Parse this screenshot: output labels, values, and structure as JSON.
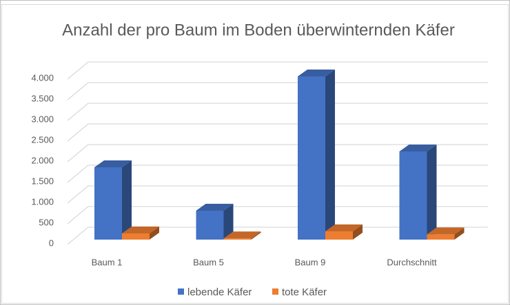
{
  "chart_data": {
    "type": "bar3d",
    "title": "Anzahl der pro Baum im Boden überwinternden Käfer",
    "categories": [
      "Baum 1",
      "Baum 5",
      "Baum 9",
      "Durchschnitt"
    ],
    "series": [
      {
        "name": "lebende Käfer",
        "color": "#4472c4",
        "values": [
          1750,
          700,
          3950,
          2133
        ]
      },
      {
        "name": "tote Käfer",
        "color": "#ed7d31",
        "values": [
          150,
          30,
          200,
          127
        ]
      }
    ],
    "ylim": [
      0,
      4000
    ],
    "yticks": [
      0,
      500,
      {
        "value": 1000,
        "label": "1.000"
      },
      {
        "value": 1500,
        "label": "1.500"
      },
      {
        "value": 2000,
        "label": "2.000"
      },
      {
        "value": 2500,
        "label": "2.500"
      },
      {
        "value": 3000,
        "label": "3.000"
      },
      {
        "value": 3500,
        "label": "3.500"
      },
      {
        "value": 4000,
        "label": "4.000"
      }
    ],
    "grid": true,
    "legend": "bottom"
  }
}
